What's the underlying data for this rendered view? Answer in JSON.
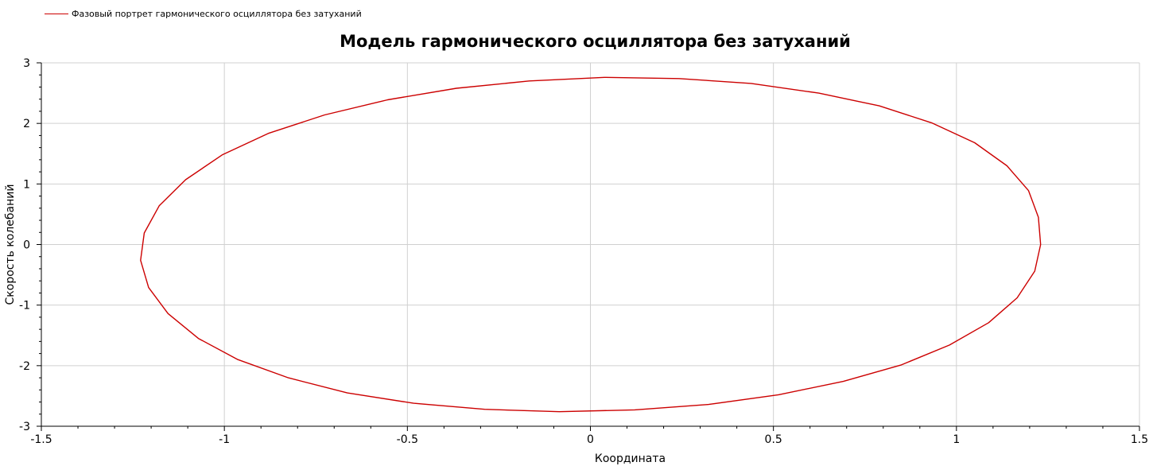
{
  "chart_data": {
    "type": "line",
    "title": "Модель гармонического осциллятора без затуханий",
    "xlabel": "Координата",
    "ylabel": "Скорость колебаний",
    "xlim": [
      -1.5,
      1.5
    ],
    "ylim": [
      -3,
      3
    ],
    "x_ticks": [
      -1.5,
      -1,
      -0.5,
      0,
      0.5,
      1,
      1.5
    ],
    "x_tick_labels": [
      "-1.5",
      "-1",
      "-0.5",
      "0",
      "0.5",
      "1",
      "1.5"
    ],
    "y_ticks": [
      -3,
      -2,
      -1,
      0,
      1,
      2,
      3
    ],
    "y_tick_labels": [
      "-3",
      "-2",
      "-1",
      "0",
      "1",
      "2",
      "3"
    ],
    "grid": true,
    "legend_position": "top-left",
    "series": [
      {
        "name": "Фазовый портрет гармонического осциллятора без затуханий",
        "color": "#cc0000",
        "x": [
          1.23,
          1.214,
          1.166,
          1.088,
          0.981,
          0.848,
          0.691,
          0.514,
          0.323,
          0.121,
          -0.085,
          -0.289,
          -0.483,
          -0.664,
          -0.825,
          -0.963,
          -1.071,
          -1.154,
          -1.207,
          -1.229,
          -1.219,
          -1.178,
          -1.106,
          -1.006,
          -0.878,
          -0.726,
          -0.554,
          -0.366,
          -0.167,
          0.038,
          0.242,
          0.439,
          0.624,
          0.789,
          0.932,
          1.05,
          1.138,
          1.197,
          1.224,
          1.23
        ],
        "y": [
          0.0,
          -0.44,
          -0.88,
          -1.29,
          -1.66,
          -1.99,
          -2.26,
          -2.48,
          -2.64,
          -2.73,
          -2.76,
          -2.72,
          -2.62,
          -2.45,
          -2.2,
          -1.9,
          -1.55,
          -1.14,
          -0.71,
          -0.26,
          0.19,
          0.64,
          1.07,
          1.48,
          1.84,
          2.14,
          2.39,
          2.58,
          2.7,
          2.76,
          2.74,
          2.66,
          2.5,
          2.29,
          2.01,
          1.68,
          1.3,
          0.89,
          0.45,
          0.0
        ]
      }
    ]
  }
}
